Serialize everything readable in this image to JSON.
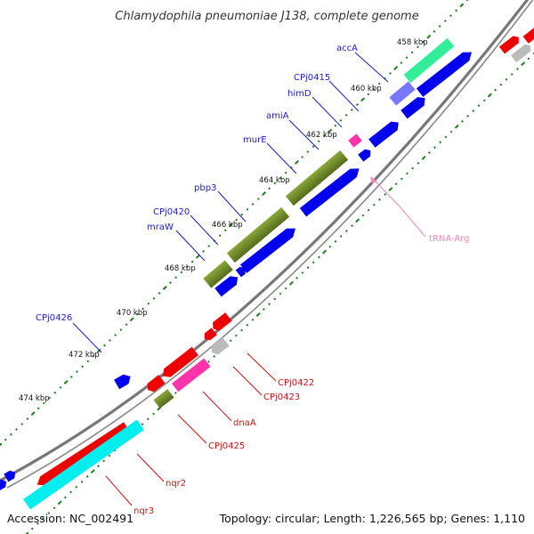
{
  "title": "Chlamydophila pneumoniae J138, complete genome",
  "footer": {
    "accession": "Accession: NC_002491",
    "topology": "Topology: circular; Length: 1,226,565 bp; Genes: 1,110"
  },
  "colors": {
    "blue": "#0000ee",
    "red": "#ee0000",
    "olive": "#6b8e23",
    "green": "#33ee99",
    "magenta": "#ff33aa",
    "cyan": "#00eeee",
    "gray": "#bbbbbb",
    "purple": "#7777ff",
    "backbone": "#666666",
    "dots": "#1f7a1f"
  },
  "kbp_ticks": {
    "k458": "458 kbp",
    "k460": "460 kbp",
    "k462": "462 kbp",
    "k464": "464 kbp",
    "k466": "466 kbp",
    "k468": "468 kbp",
    "k470": "470 kbp",
    "k472": "472 kbp",
    "k474": "474 kbp"
  },
  "gene_labels": {
    "accA": "accA",
    "CPj0415": "CPj0415",
    "himD": "himD",
    "amiA": "amiA",
    "murE": "murE",
    "pbp3": "pbp3",
    "CPj0420": "CPj0420",
    "mraW": "mraW",
    "CPj0426": "CPj0426",
    "tRNA_Arg": "tRNA-Arg",
    "CPj0422": "CPj0422",
    "CPj0423": "CPj0423",
    "dnaA": "dnaA",
    "CPj0425": "CPj0425",
    "nqr2": "nqr2",
    "nqr3": "nqr3"
  }
}
